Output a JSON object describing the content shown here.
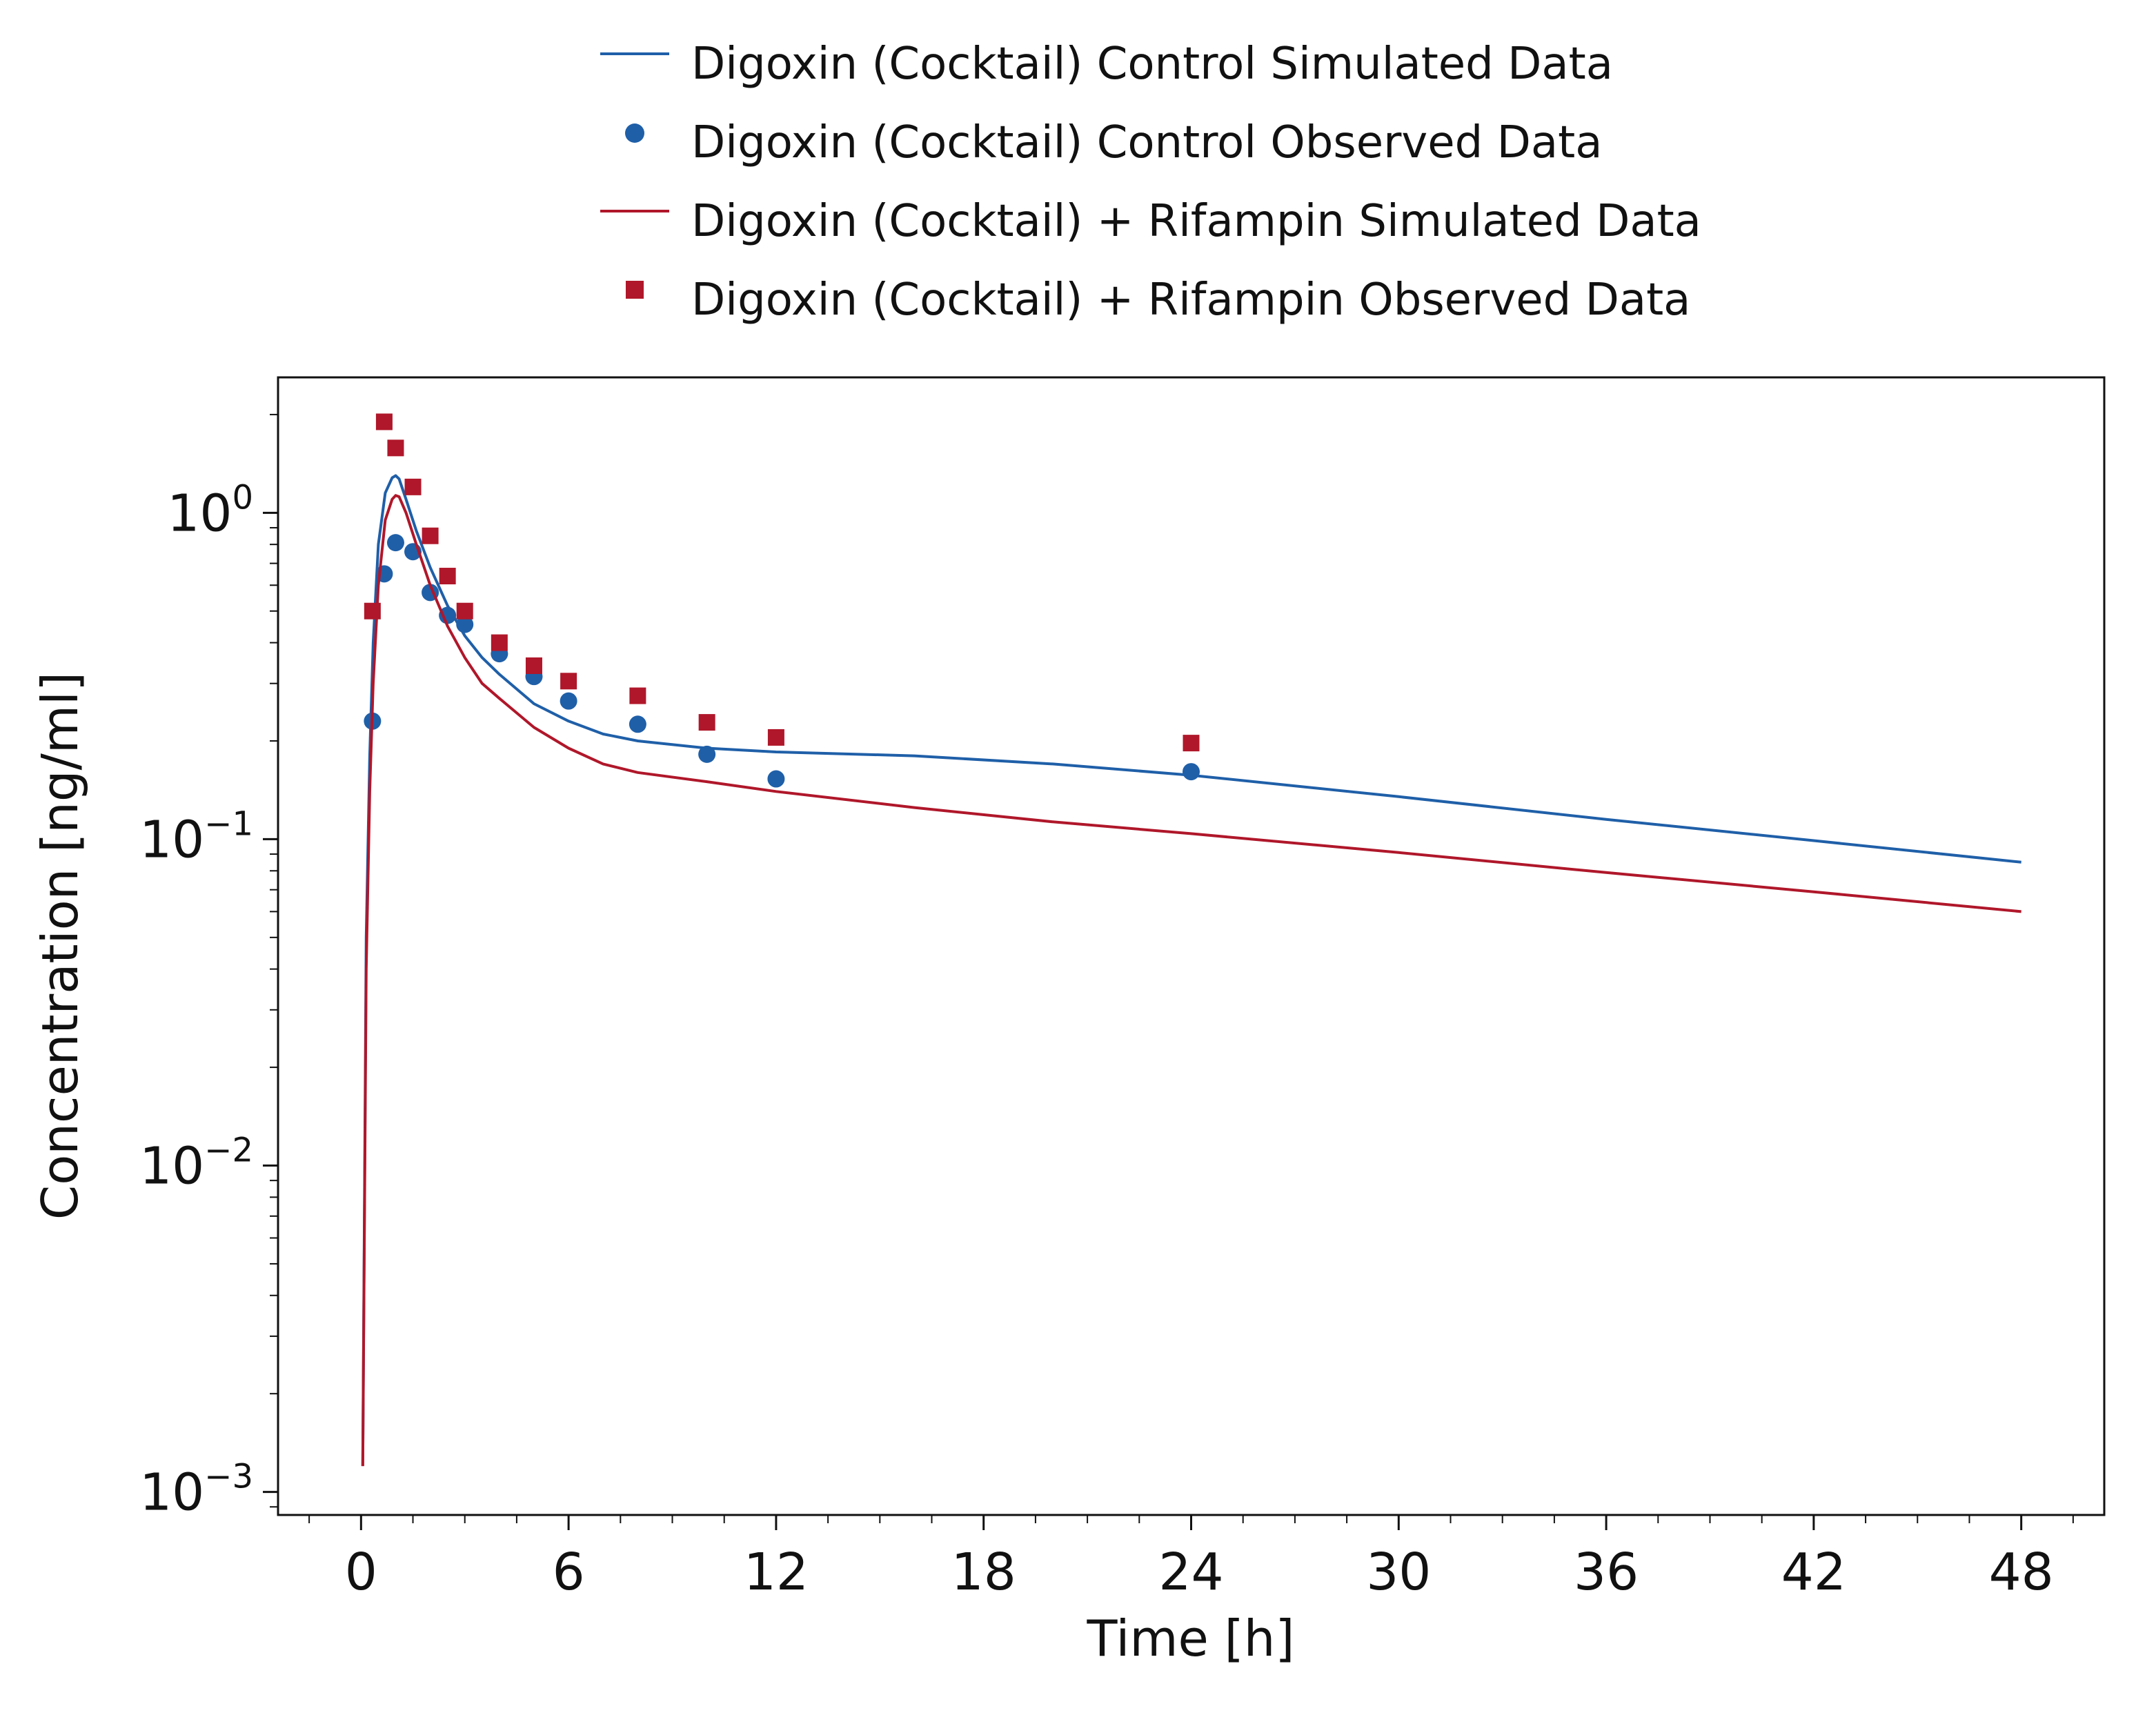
{
  "chart_data": {
    "type": "line",
    "xlabel": "Time [h]",
    "ylabel": "Concentration [ng/ml]",
    "xlim": [
      -2.4,
      50.4
    ],
    "ylim": [
      0.00085,
      2.6
    ],
    "yscale": "log",
    "xticks": [
      0,
      6,
      12,
      18,
      24,
      30,
      36,
      42,
      48
    ],
    "xtick_labels": [
      "0",
      "6",
      "12",
      "18",
      "24",
      "30",
      "36",
      "42",
      "48"
    ],
    "yticks": [
      0.001,
      0.01,
      0.1,
      1
    ],
    "ytick_labels": [
      {
        "base": "10",
        "exp": "−3"
      },
      {
        "base": "10",
        "exp": "−2"
      },
      {
        "base": "10",
        "exp": "−1"
      },
      {
        "base": "10",
        "exp": "0"
      }
    ],
    "grid": false,
    "legend_position": "top",
    "colors": {
      "control": "#1f5fa8",
      "rifampin": "#b0172a"
    },
    "series": [
      {
        "name": "Digoxin (Cocktail) Control Simulated Data",
        "kind": "line",
        "color": "#1f5fa8",
        "x": [
          0.05,
          0.15,
          0.25,
          0.35,
          0.5,
          0.7,
          0.9,
          1.0,
          1.1,
          1.3,
          1.6,
          2.0,
          2.5,
          3.0,
          3.5,
          4,
          5,
          6,
          7,
          8,
          10,
          12,
          16,
          20,
          24,
          30,
          36,
          42,
          48
        ],
        "y": [
          0.0012,
          0.05,
          0.18,
          0.4,
          0.8,
          1.15,
          1.28,
          1.3,
          1.27,
          1.1,
          0.88,
          0.68,
          0.52,
          0.42,
          0.36,
          0.32,
          0.26,
          0.23,
          0.21,
          0.2,
          0.19,
          0.185,
          0.18,
          0.17,
          0.157,
          0.135,
          0.115,
          0.099,
          0.085
        ]
      },
      {
        "name": "Digoxin (Cocktail) Control Observed Data",
        "kind": "scatter",
        "marker": "circle",
        "color": "#1f5fa8",
        "x": [
          0.33,
          0.67,
          1,
          1.5,
          2,
          2.5,
          3,
          4,
          5,
          6,
          8,
          10,
          12,
          24
        ],
        "y": [
          0.23,
          0.65,
          0.81,
          0.76,
          0.57,
          0.485,
          0.455,
          0.37,
          0.315,
          0.265,
          0.225,
          0.182,
          0.153,
          0.161
        ]
      },
      {
        "name": "Digoxin (Cocktail) + Rifampin Simulated Data",
        "kind": "line",
        "color": "#b0172a",
        "x": [
          0.05,
          0.15,
          0.25,
          0.35,
          0.5,
          0.7,
          0.9,
          1.0,
          1.1,
          1.3,
          1.6,
          2.0,
          2.5,
          3.0,
          3.5,
          4,
          5,
          6,
          7,
          8,
          10,
          12,
          16,
          20,
          24,
          30,
          36,
          42,
          48
        ],
        "y": [
          0.0012,
          0.04,
          0.14,
          0.3,
          0.6,
          0.95,
          1.1,
          1.13,
          1.12,
          1.0,
          0.8,
          0.6,
          0.45,
          0.36,
          0.3,
          0.27,
          0.22,
          0.19,
          0.17,
          0.16,
          0.15,
          0.14,
          0.125,
          0.113,
          0.104,
          0.091,
          0.079,
          0.069,
          0.06
        ]
      },
      {
        "name": "Digoxin (Cocktail) + Rifampin Observed Data",
        "kind": "scatter",
        "marker": "square",
        "color": "#b0172a",
        "x": [
          0.33,
          0.67,
          1,
          1.5,
          2,
          2.5,
          3,
          4,
          5,
          6,
          8,
          10,
          12,
          24
        ],
        "y": [
          0.5,
          1.9,
          1.58,
          1.2,
          0.85,
          0.64,
          0.5,
          0.4,
          0.34,
          0.305,
          0.275,
          0.228,
          0.205,
          0.197
        ]
      }
    ]
  }
}
